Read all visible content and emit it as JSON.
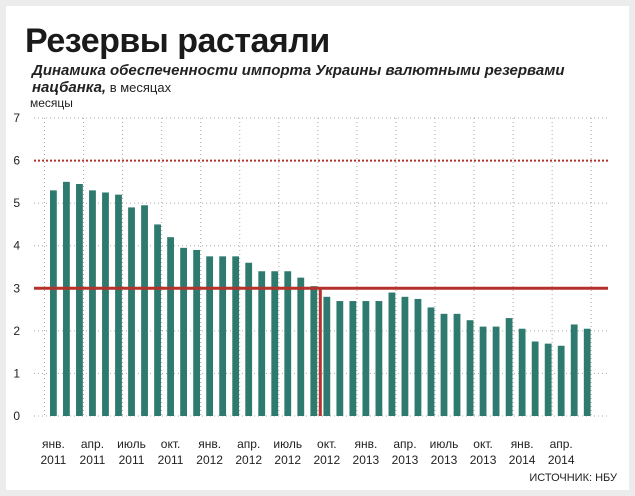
{
  "title": "Резервы растаяли",
  "subtitle": "Динамика обеспеченности импорта Украины валютными резервами нацбанка,",
  "subtitle_unit": " в месяцах",
  "ylabel": "месяцы",
  "source": "ИСТОЧНИК: НБУ",
  "colors": {
    "bar": "#2e7a6e",
    "threshold": "#b5322b",
    "grid": "#aaaaaa"
  },
  "chart_data": {
    "type": "bar",
    "ylim": [
      0,
      7
    ],
    "yticks": [
      0,
      1,
      2,
      3,
      4,
      5,
      6,
      7
    ],
    "values": [
      5.3,
      5.5,
      5.45,
      5.3,
      5.25,
      5.2,
      4.9,
      4.95,
      4.5,
      4.2,
      3.95,
      3.9,
      3.75,
      3.75,
      3.75,
      3.6,
      3.4,
      3.4,
      3.4,
      3.25,
      3.05,
      2.8,
      2.7,
      2.7,
      2.7,
      2.7,
      2.9,
      2.8,
      2.75,
      2.55,
      2.4,
      2.4,
      2.25,
      2.1,
      2.1,
      2.3,
      2.05,
      1.75,
      1.7,
      1.65,
      2.15,
      2.05
    ],
    "xtick_labels": [
      {
        "index": 0,
        "month": "янв.",
        "year": "2011"
      },
      {
        "index": 3,
        "month": "апр.",
        "year": "2011"
      },
      {
        "index": 6,
        "month": "июль",
        "year": "2011"
      },
      {
        "index": 9,
        "month": "окт.",
        "year": "2011"
      },
      {
        "index": 12,
        "month": "янв.",
        "year": "2012"
      },
      {
        "index": 15,
        "month": "апр.",
        "year": "2012"
      },
      {
        "index": 18,
        "month": "июль",
        "year": "2012"
      },
      {
        "index": 21,
        "month": "окт.",
        "year": "2012"
      },
      {
        "index": 24,
        "month": "янв.",
        "year": "2013"
      },
      {
        "index": 27,
        "month": "апр.",
        "year": "2013"
      },
      {
        "index": 30,
        "month": "июль",
        "year": "2013"
      },
      {
        "index": 33,
        "month": "окт.",
        "year": "2013"
      },
      {
        "index": 36,
        "month": "янв.",
        "year": "2014"
      },
      {
        "index": 39,
        "month": "апр.",
        "year": "2014"
      }
    ],
    "reference_lines": [
      {
        "value": 6,
        "style": "dotted",
        "from_index": 0,
        "to_index": 41
      },
      {
        "value": 3,
        "style": "solid",
        "from_index": 0,
        "to_index": 41
      }
    ],
    "marker_index": 20.5,
    "grid": true
  }
}
